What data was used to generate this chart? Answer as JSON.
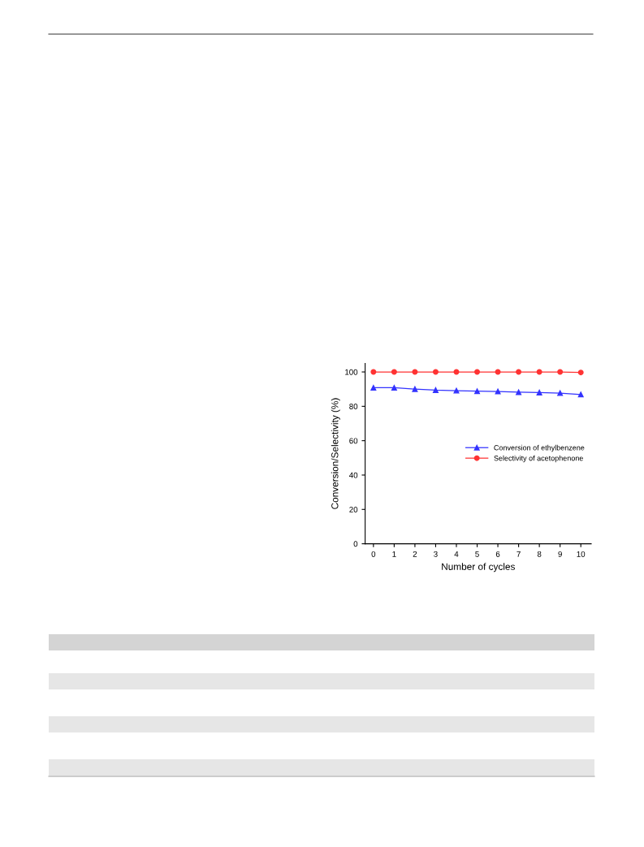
{
  "chart_data": {
    "type": "line",
    "xlabel": "Number of cycles",
    "ylabel": "Conversion/Selectivity (%)",
    "x": [
      0,
      1,
      2,
      3,
      4,
      5,
      6,
      7,
      8,
      9,
      10
    ],
    "series": [
      {
        "name": "Conversion of ethylbenzene",
        "color": "#3333ff",
        "marker": "triangle",
        "values": [
          90.8,
          90.8,
          90.0,
          89.4,
          89.1,
          88.8,
          88.6,
          88.2,
          88.0,
          87.7,
          86.9
        ]
      },
      {
        "name": "Selectivity of acetophenone",
        "color": "#ff3333",
        "marker": "circle",
        "values": [
          100,
          100,
          100,
          100,
          100,
          100,
          100,
          100,
          100,
          100,
          99.7
        ]
      }
    ],
    "xlim": [
      -0.4,
      10.5
    ],
    "xticks": [
      0,
      1,
      2,
      3,
      4,
      5,
      6,
      7,
      8,
      9,
      10
    ],
    "ylim": [
      0,
      105
    ],
    "yticks": [
      0,
      20,
      40,
      60,
      80,
      100
    ],
    "grid": false,
    "legend": "right",
    "line_style": "solid"
  }
}
